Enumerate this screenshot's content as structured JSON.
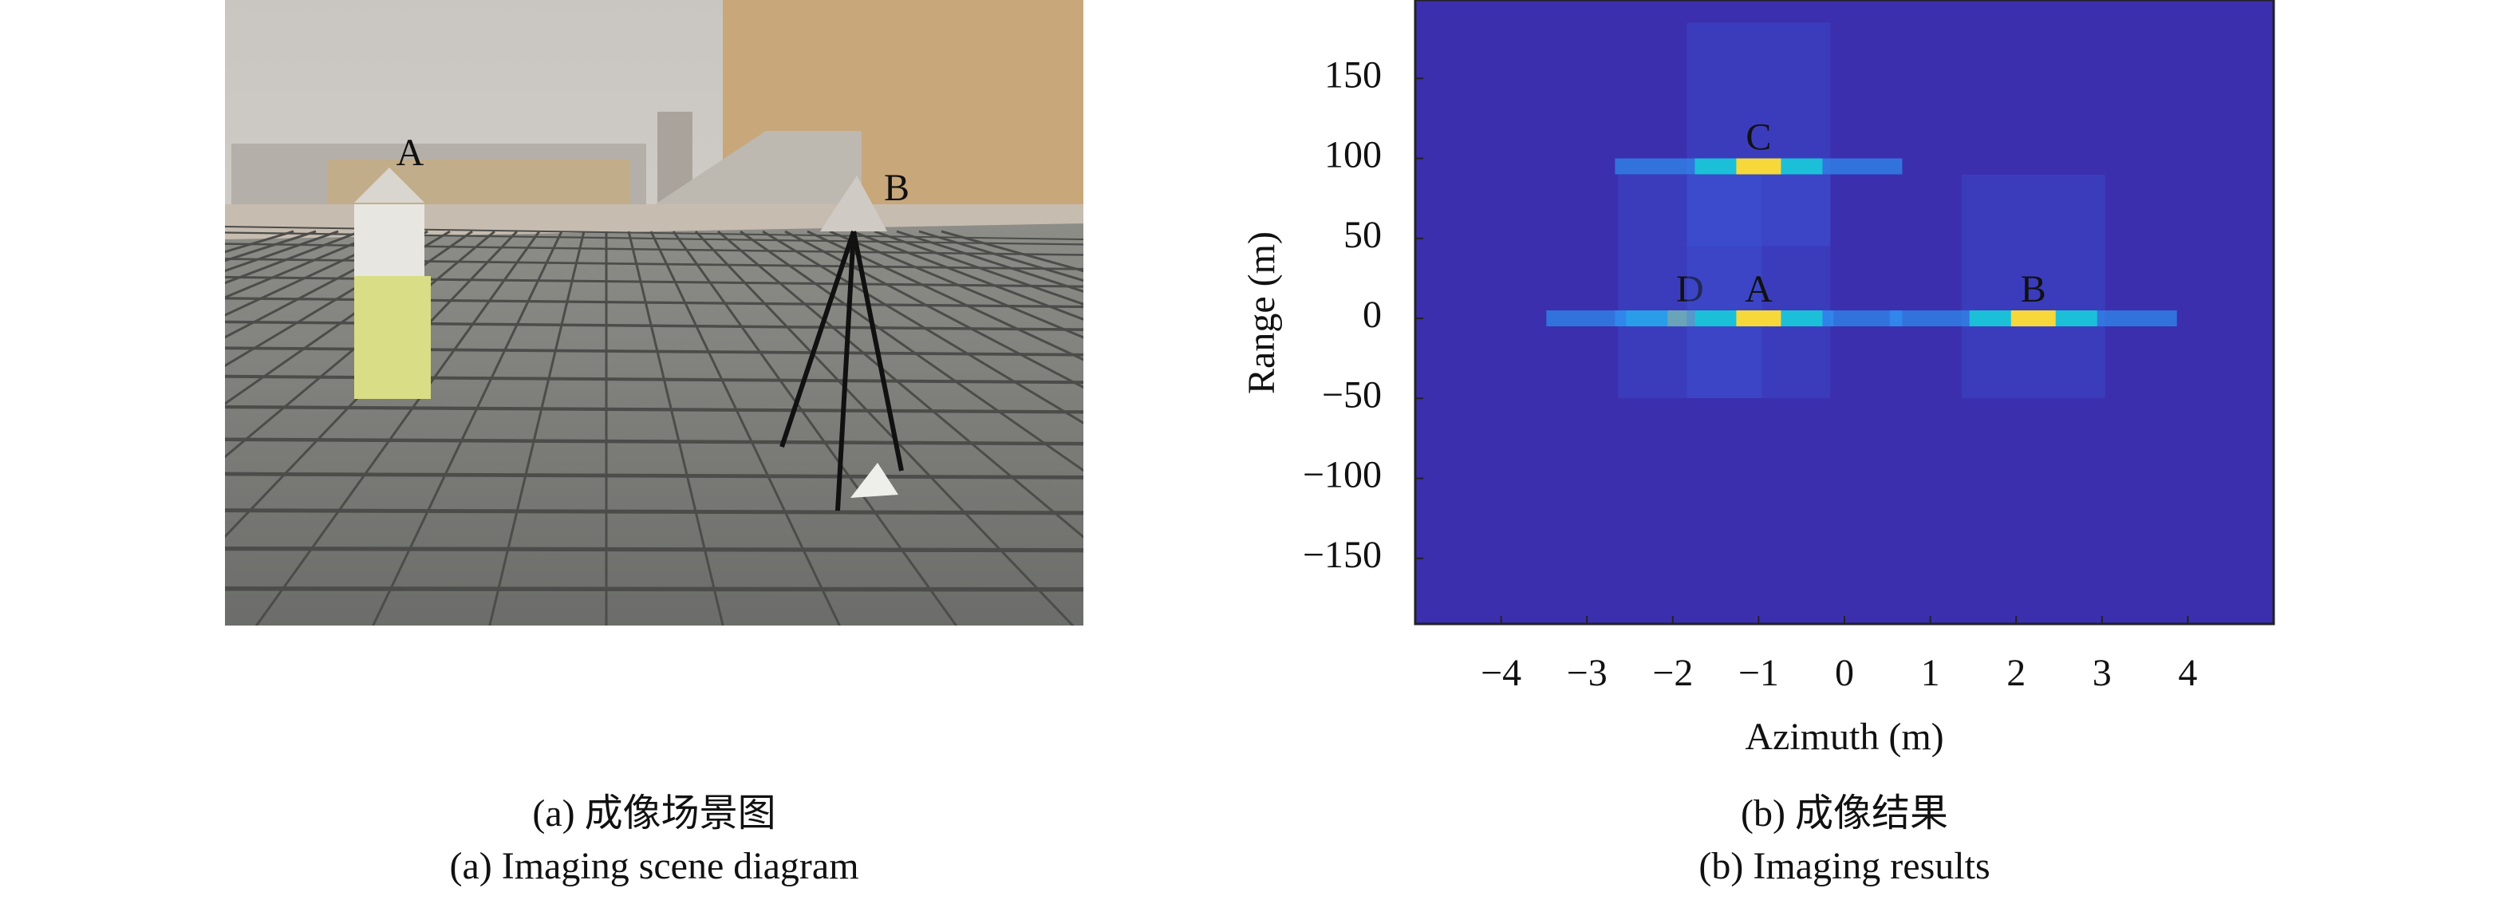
{
  "photo": {
    "labels": [
      "A",
      "B"
    ],
    "caption_cn": "(a) 成像场景图",
    "caption_en": "(a) Imaging scene diagram"
  },
  "chart_data": {
    "type": "heatmap",
    "caption_cn": "(b) 成像结果",
    "caption_en": "(b) Imaging results",
    "x_label": "Azimuth (m)",
    "y_label": "Range (m)",
    "xlim": [
      -5,
      5
    ],
    "ylim": [
      -191,
      199
    ],
    "xticks": [
      {
        "value": -4,
        "label": "−4"
      },
      {
        "value": -3,
        "label": "−3"
      },
      {
        "value": -2,
        "label": "−2"
      },
      {
        "value": -1,
        "label": "−1"
      },
      0,
      1,
      2,
      3,
      4
    ],
    "yticks": [
      {
        "value": -150,
        "label": "−150"
      },
      {
        "value": -100,
        "label": "−100"
      },
      {
        "value": -50,
        "label": "−50"
      },
      0,
      50,
      100,
      150
    ],
    "targets": [
      {
        "name": "C",
        "x": -1,
        "y": 95
      },
      {
        "name": "D",
        "x": -1.8,
        "y": 0
      },
      {
        "name": "A",
        "x": -1,
        "y": 0
      },
      {
        "name": "B",
        "x": 2.2,
        "y": 0
      }
    ],
    "background": "#3b2fae"
  }
}
